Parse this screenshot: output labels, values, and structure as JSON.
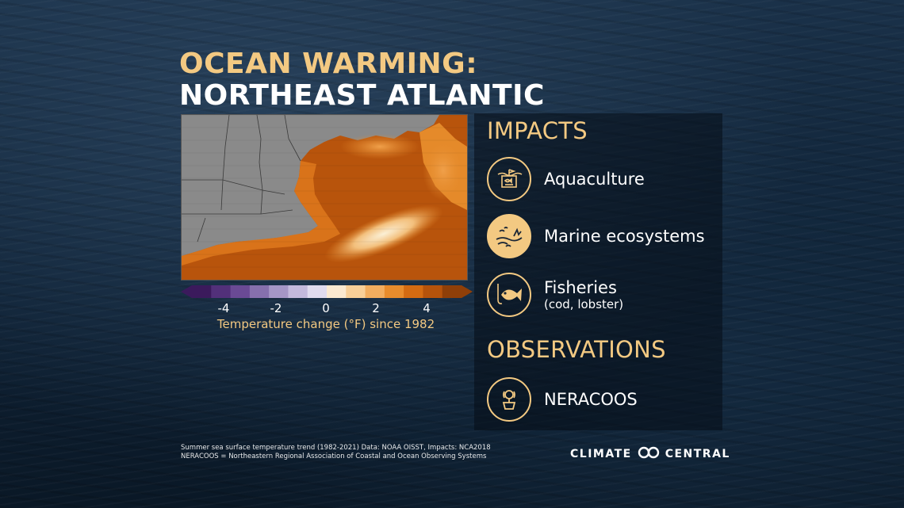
{
  "title": {
    "line1": "OCEAN WARMING:",
    "line2": "NORTHEAST ATLANTIC"
  },
  "map": {
    "colorbar": {
      "ticks": [
        "-4",
        "-2",
        "0",
        "2",
        "4"
      ],
      "label": "Temperature change (°F) since 1982",
      "colors": [
        "#3b1a5c",
        "#52307a",
        "#6a4a95",
        "#8670ad",
        "#a596c6",
        "#c3b9dc",
        "#e0dbee",
        "#fbe9d0",
        "#f8cf98",
        "#f2ad5f",
        "#e88c2c",
        "#d46b12",
        "#b6530b",
        "#8f3f08"
      ]
    },
    "colors": {
      "land": "#8a8a8a",
      "warm_high": "#f5e0b8",
      "warm_mid": "#e58a2a",
      "warm_base": "#b8540c"
    }
  },
  "panel": {
    "impacts_heading": "IMPACTS",
    "impacts": [
      {
        "label": "Aquaculture",
        "sub": "",
        "icon": "aquaculture-icon"
      },
      {
        "label": "Marine ecosystems",
        "sub": "",
        "icon": "marine-ecosystems-icon"
      },
      {
        "label": "Fisheries",
        "sub": "(cod, lobster)",
        "icon": "fish-icon"
      }
    ],
    "observations_heading": "OBSERVATIONS",
    "observations": [
      {
        "label": "NERACOOS",
        "icon": "buoy-icon"
      }
    ]
  },
  "footnotes": {
    "line1": "Summer sea surface temperature trend (1982-2021) Data: NOAA OISST, Impacts: NCA2018",
    "line2": "NERACOOS = Northeastern Regional Association of Coastal and Ocean Observing Systems"
  },
  "logo": {
    "left": "CLIMATE",
    "right": "CENTRAL"
  },
  "accent_color": "#f3c982"
}
